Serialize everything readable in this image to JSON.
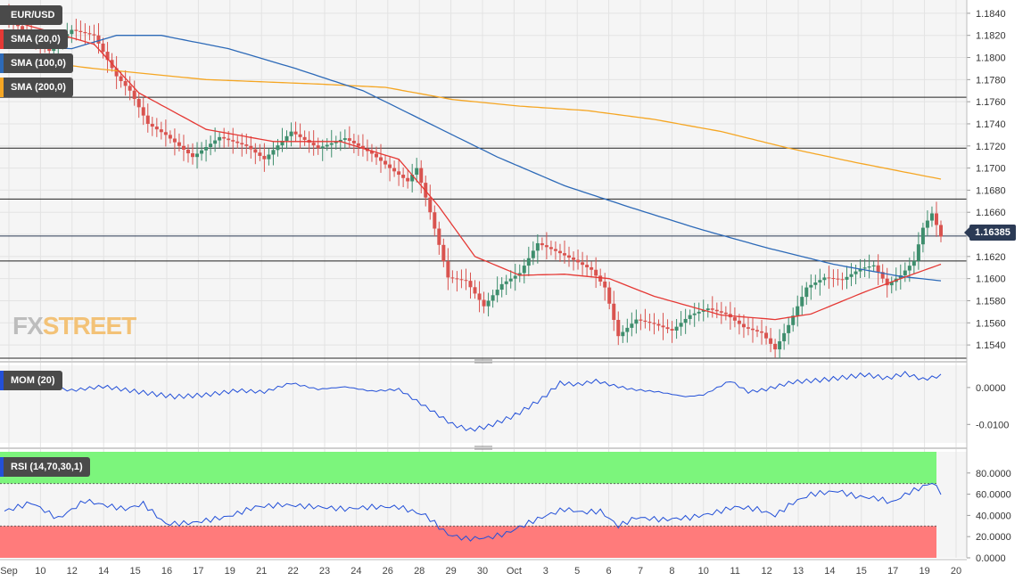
{
  "chart_data": {
    "type": "candlestick",
    "symbol": "EUR/USD",
    "last_price": "1.16385",
    "x_tick_labels": [
      "Sep",
      "10",
      "12",
      "14",
      "15",
      "16",
      "17",
      "19",
      "21",
      "22",
      "23",
      "24",
      "26",
      "28",
      "29",
      "30",
      "Oct",
      "3",
      "5",
      "6",
      "7",
      "8",
      "10",
      "11",
      "12",
      "13",
      "14",
      "15",
      "17",
      "19",
      "20"
    ],
    "y_ticks": [
      "1.1840",
      "1.1820",
      "1.1800",
      "1.1780",
      "1.1760",
      "1.1740",
      "1.1720",
      "1.1700",
      "1.1680",
      "1.1660",
      "1.1640",
      "1.1620",
      "1.1600",
      "1.1580",
      "1.1560",
      "1.1540"
    ],
    "ylim": [
      1.1528,
      1.1852
    ],
    "horizontal_lines": [
      1.1764,
      1.1718,
      1.1672,
      1.1616,
      1.1528
    ],
    "indicators": [
      "SMA (20,0)",
      "SMA (100,0)",
      "SMA (200,0)"
    ],
    "price_keypoints": [
      [
        0,
        1.1838
      ],
      [
        5,
        1.1822
      ],
      [
        10,
        1.1806
      ],
      [
        15,
        1.1825
      ],
      [
        20,
        1.182
      ],
      [
        25,
        1.1783
      ],
      [
        28,
        1.177
      ],
      [
        32,
        1.174
      ],
      [
        36,
        1.173
      ],
      [
        42,
        1.171
      ],
      [
        48,
        1.1728
      ],
      [
        54,
        1.172
      ],
      [
        58,
        1.1708
      ],
      [
        64,
        1.1733
      ],
      [
        70,
        1.1718
      ],
      [
        76,
        1.1727
      ],
      [
        82,
        1.1713
      ],
      [
        86,
        1.17
      ],
      [
        90,
        1.1688
      ],
      [
        92,
        1.17
      ],
      [
        95,
        1.166
      ],
      [
        99,
        1.1601
      ],
      [
        103,
        1.1598
      ],
      [
        107,
        1.1575
      ],
      [
        111,
        1.1595
      ],
      [
        115,
        1.1605
      ],
      [
        119,
        1.1632
      ],
      [
        123,
        1.1625
      ],
      [
        127,
        1.1617
      ],
      [
        131,
        1.1608
      ],
      [
        134,
        1.1592
      ],
      [
        137,
        1.1548
      ],
      [
        141,
        1.1563
      ],
      [
        145,
        1.1559
      ],
      [
        149,
        1.1553
      ],
      [
        153,
        1.1567
      ],
      [
        157,
        1.1573
      ],
      [
        161,
        1.1568
      ],
      [
        165,
        1.1556
      ],
      [
        169,
        1.1551
      ],
      [
        172,
        1.1536
      ],
      [
        175,
        1.1558
      ],
      [
        179,
        1.1592
      ],
      [
        183,
        1.1601
      ],
      [
        187,
        1.1599
      ],
      [
        191,
        1.1609
      ],
      [
        194,
        1.1612
      ],
      [
        197,
        1.1594
      ],
      [
        200,
        1.1603
      ],
      [
        203,
        1.1616
      ],
      [
        205,
        1.1646
      ],
      [
        207,
        1.1659
      ],
      [
        209,
        1.1638
      ]
    ],
    "sma20_keypoints": [
      [
        0,
        1.1835
      ],
      [
        20,
        1.1812
      ],
      [
        30,
        1.1768
      ],
      [
        45,
        1.1735
      ],
      [
        60,
        1.1724
      ],
      [
        75,
        1.1724
      ],
      [
        88,
        1.1708
      ],
      [
        97,
        1.1665
      ],
      [
        105,
        1.162
      ],
      [
        115,
        1.1603
      ],
      [
        125,
        1.1604
      ],
      [
        135,
        1.16
      ],
      [
        145,
        1.1584
      ],
      [
        160,
        1.1567
      ],
      [
        172,
        1.1563
      ],
      [
        180,
        1.1568
      ],
      [
        192,
        1.1588
      ],
      [
        200,
        1.16
      ],
      [
        209,
        1.1613
      ]
    ],
    "sma100_keypoints": [
      [
        0,
        1.181
      ],
      [
        15,
        1.1808
      ],
      [
        25,
        1.182
      ],
      [
        35,
        1.182
      ],
      [
        50,
        1.1808
      ],
      [
        65,
        1.179
      ],
      [
        80,
        1.177
      ],
      [
        95,
        1.174
      ],
      [
        110,
        1.171
      ],
      [
        125,
        1.1684
      ],
      [
        140,
        1.1664
      ],
      [
        155,
        1.1645
      ],
      [
        170,
        1.1628
      ],
      [
        185,
        1.1613
      ],
      [
        200,
        1.1602
      ],
      [
        209,
        1.1598
      ]
    ],
    "sma200_keypoints": [
      [
        0,
        1.18
      ],
      [
        20,
        1.179
      ],
      [
        45,
        1.178
      ],
      [
        70,
        1.1776
      ],
      [
        85,
        1.1773
      ],
      [
        100,
        1.1762
      ],
      [
        115,
        1.1756
      ],
      [
        130,
        1.1752
      ],
      [
        145,
        1.1744
      ],
      [
        160,
        1.1733
      ],
      [
        175,
        1.1718
      ],
      [
        190,
        1.1705
      ],
      [
        209,
        1.169
      ]
    ],
    "mom": {
      "label": "MOM (20)",
      "y_ticks": [
        "0.0000",
        "-0.0100"
      ],
      "ylim": [
        -0.015,
        0.006
      ],
      "keypoints": [
        [
          0,
          -0.0005
        ],
        [
          8,
          0.0005
        ],
        [
          15,
          -0.0008
        ],
        [
          22,
          0.0003
        ],
        [
          30,
          -0.0012
        ],
        [
          38,
          -0.0025
        ],
        [
          45,
          -0.002
        ],
        [
          52,
          -0.0008
        ],
        [
          58,
          -0.0012
        ],
        [
          64,
          0.0012
        ],
        [
          70,
          -0.0005
        ],
        [
          76,
          0.0002
        ],
        [
          82,
          -0.001
        ],
        [
          88,
          -0.0005
        ],
        [
          95,
          -0.006
        ],
        [
          100,
          -0.01
        ],
        [
          104,
          -0.0115
        ],
        [
          108,
          -0.0105
        ],
        [
          114,
          -0.0075
        ],
        [
          120,
          -0.003
        ],
        [
          124,
          0.0012
        ],
        [
          128,
          0.0008
        ],
        [
          132,
          0.0018
        ],
        [
          136,
          0.0005
        ],
        [
          140,
          -0.0005
        ],
        [
          146,
          -0.0012
        ],
        [
          152,
          -0.0025
        ],
        [
          156,
          -0.002
        ],
        [
          162,
          0.0018
        ],
        [
          166,
          -0.0012
        ],
        [
          170,
          -0.0005
        ],
        [
          176,
          0.0015
        ],
        [
          182,
          0.002
        ],
        [
          188,
          0.0028
        ],
        [
          192,
          0.0035
        ],
        [
          197,
          0.0025
        ],
        [
          201,
          0.0038
        ],
        [
          205,
          0.0022
        ],
        [
          209,
          0.0032
        ]
      ]
    },
    "rsi": {
      "label": "RSI (14,70,30,1)",
      "y_ticks": [
        "80.0000",
        "60.0000",
        "40.0000",
        "20.0000",
        "0.0000"
      ],
      "ylim": [
        0,
        100
      ],
      "overbought": 70,
      "oversold": 30,
      "keypoints": [
        [
          0,
          44
        ],
        [
          6,
          52
        ],
        [
          12,
          37
        ],
        [
          18,
          54
        ],
        [
          22,
          50
        ],
        [
          27,
          46
        ],
        [
          31,
          51
        ],
        [
          36,
          32
        ],
        [
          42,
          33
        ],
        [
          50,
          39
        ],
        [
          56,
          48
        ],
        [
          62,
          50
        ],
        [
          70,
          48
        ],
        [
          76,
          46
        ],
        [
          82,
          48
        ],
        [
          88,
          48
        ],
        [
          94,
          40
        ],
        [
          99,
          22
        ],
        [
          103,
          18
        ],
        [
          108,
          19
        ],
        [
          112,
          23
        ],
        [
          117,
          33
        ],
        [
          121,
          40
        ],
        [
          125,
          46
        ],
        [
          129,
          43
        ],
        [
          133,
          44
        ],
        [
          137,
          30
        ],
        [
          141,
          38
        ],
        [
          147,
          36
        ],
        [
          153,
          38
        ],
        [
          158,
          42
        ],
        [
          163,
          48
        ],
        [
          168,
          46
        ],
        [
          172,
          40
        ],
        [
          176,
          52
        ],
        [
          180,
          60
        ],
        [
          186,
          63
        ],
        [
          190,
          58
        ],
        [
          195,
          56
        ],
        [
          198,
          52
        ],
        [
          202,
          62
        ],
        [
          205,
          67
        ],
        [
          207,
          71
        ],
        [
          209,
          62
        ]
      ]
    },
    "grid": true
  },
  "ui": {
    "symbol_label": "EUR/USD",
    "sma20_label": "SMA (20,0)",
    "sma100_label": "SMA (100,0)",
    "sma200_label": "SMA (200,0)",
    "mom_label": "MOM (20)",
    "rsi_label": "RSI (14,70,30,1)",
    "logo_fx": "FX",
    "logo_street": "STREET",
    "price_tag": "1.16385"
  },
  "colors": {
    "bull": "#3e8e6d",
    "bear": "#d9534f",
    "sma20": "#e53935",
    "sma100": "#2d6ab8",
    "sma200": "#f5a623",
    "momline": "#2350d8",
    "rsiline": "#2350d8",
    "rsi_overbought_fill": "#7cf57c",
    "rsi_oversold_fill": "#ff7b7b"
  }
}
